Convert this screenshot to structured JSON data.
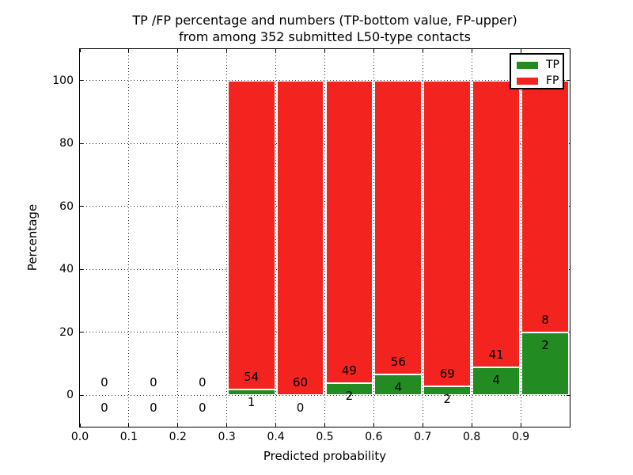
{
  "title": {
    "line1": "TP /FP percentage and numbers (TP-bottom value, FP-upper)",
    "line2": "from among 352 submitted L50-type contacts"
  },
  "axes": {
    "xlabel": "Predicted probability",
    "ylabel": "Percentage",
    "x_ticks": [
      "0.0",
      "0.1",
      "0.2",
      "0.3",
      "0.4",
      "0.5",
      "0.6",
      "0.7",
      "0.8",
      "0.9"
    ],
    "y_ticks": [
      "0",
      "20",
      "40",
      "60",
      "80",
      "100"
    ],
    "xlim": [
      0.0,
      1.0
    ],
    "ylim": [
      -10,
      110
    ],
    "grid": "dotted"
  },
  "legend": {
    "position": "upper right",
    "items": [
      {
        "label": "TP",
        "color": "#228b22"
      },
      {
        "label": "FP",
        "color": "#f3241f"
      }
    ]
  },
  "colors": {
    "tp": "#228b22",
    "fp": "#f3241f",
    "grid": "#000000",
    "spine": "#000000",
    "background": "#ffffff",
    "text": "#000000"
  },
  "chart_data": {
    "type": "bar",
    "stacked": true,
    "normalized": "each bin stacked to 100% (TP% bottom, FP% top); labels show raw counts",
    "x_bin_width": 0.1,
    "total_contacts": 352,
    "series": [
      {
        "name": "TP",
        "color": "#228b22"
      },
      {
        "name": "FP",
        "color": "#f3241f"
      }
    ],
    "bins": [
      {
        "x0": 0.0,
        "x1": 0.1,
        "tp_count": 0,
        "fp_count": 0
      },
      {
        "x0": 0.1,
        "x1": 0.2,
        "tp_count": 0,
        "fp_count": 0
      },
      {
        "x0": 0.2,
        "x1": 0.3,
        "tp_count": 0,
        "fp_count": 0
      },
      {
        "x0": 0.3,
        "x1": 0.4,
        "tp_count": 1,
        "fp_count": 54
      },
      {
        "x0": 0.4,
        "x1": 0.5,
        "tp_count": 0,
        "fp_count": 60
      },
      {
        "x0": 0.5,
        "x1": 0.6,
        "tp_count": 2,
        "fp_count": 49
      },
      {
        "x0": 0.6,
        "x1": 0.7,
        "tp_count": 4,
        "fp_count": 56
      },
      {
        "x0": 0.7,
        "x1": 0.8,
        "tp_count": 2,
        "fp_count": 69
      },
      {
        "x0": 0.8,
        "x1": 0.9,
        "tp_count": 4,
        "fp_count": 41
      },
      {
        "x0": 0.9,
        "x1": 1.0,
        "tp_count": 2,
        "fp_count": 8
      }
    ],
    "value_label_offset_data_units": 4,
    "xlabel": "Predicted probability",
    "ylabel": "Percentage",
    "ylim": [
      -10,
      110
    ]
  }
}
